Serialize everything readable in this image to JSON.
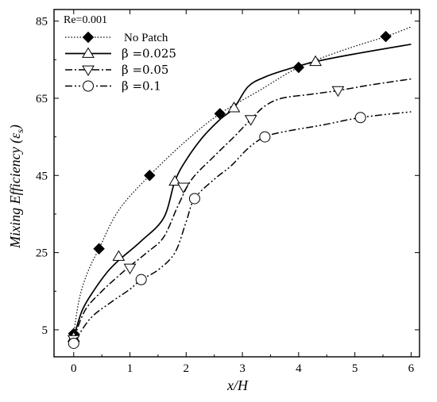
{
  "chart_data": {
    "type": "line",
    "annotation": "Re=0.001",
    "xlabel": "x/H",
    "ylabel": "Mixing Efficiency (ε",
    "ylabel_sub": "s",
    "ylabel_close": ")",
    "xlim": [
      -0.35,
      6.15
    ],
    "ylim": [
      -2,
      88
    ],
    "xticks": [
      0,
      1,
      2,
      3,
      4,
      5,
      6
    ],
    "yticks": [
      5,
      25,
      45,
      65,
      85
    ],
    "legend_position": "top-left",
    "series": [
      {
        "name": "No Patch",
        "style": "dotted",
        "marker": "diamond-filled",
        "x": [
          0,
          0.45,
          1.35,
          2.6,
          4.0,
          5.55
        ],
        "y": [
          4,
          26,
          45,
          61,
          73,
          81
        ],
        "curve_x": [
          0,
          0.1,
          0.25,
          0.45,
          0.8,
          1.35,
          2.0,
          2.6,
          3.3,
          4.0,
          4.8,
          5.55,
          6.0
        ],
        "curve_y": [
          4,
          13,
          20,
          26,
          36,
          45,
          54,
          61,
          67,
          73,
          77.5,
          81,
          83.5
        ]
      },
      {
        "name": "β =0.025",
        "style": "solid",
        "marker": "triangle-up",
        "x": [
          0,
          0.8,
          1.8,
          2.85,
          4.3
        ],
        "y": [
          3,
          24,
          43.5,
          62.5,
          74.5
        ],
        "curve_x": [
          0,
          0.15,
          0.35,
          0.6,
          0.8,
          1.2,
          1.6,
          1.8,
          2.0,
          2.3,
          2.6,
          2.85,
          3.1,
          3.4,
          3.8,
          4.3,
          5.0,
          6.0
        ],
        "curve_y": [
          3,
          10,
          15,
          20,
          23,
          28,
          34,
          43.5,
          49,
          55,
          59.5,
          62.5,
          68,
          70.5,
          72.5,
          74.5,
          76.5,
          79
        ]
      },
      {
        "name": "β =0.05",
        "style": "dashdot",
        "marker": "triangle-down",
        "x": [
          0,
          1.0,
          1.95,
          3.15,
          4.7
        ],
        "y": [
          2.5,
          21,
          42,
          59.5,
          67
        ],
        "curve_x": [
          0,
          0.2,
          0.5,
          0.8,
          1.0,
          1.3,
          1.6,
          1.85,
          2.1,
          2.5,
          2.85,
          3.15,
          3.4,
          3.7,
          4.2,
          4.7,
          5.3,
          6.0
        ],
        "curve_y": [
          2.5,
          10,
          15,
          19,
          21.5,
          25,
          29,
          37,
          44,
          50,
          55,
          59.5,
          63,
          65,
          66,
          67,
          68.5,
          70
        ]
      },
      {
        "name": "β =0.1",
        "style": "dashdotdot",
        "marker": "circle",
        "x": [
          0,
          1.2,
          2.15,
          3.4,
          5.1
        ],
        "y": [
          1.5,
          18,
          39,
          55,
          60
        ],
        "curve_x": [
          0,
          0.3,
          0.7,
          1.0,
          1.2,
          1.5,
          1.8,
          2.0,
          2.15,
          2.5,
          2.8,
          3.1,
          3.4,
          3.8,
          4.4,
          5.1,
          6.0
        ],
        "curve_y": [
          1.5,
          8,
          12.5,
          15.5,
          18,
          20.5,
          25,
          33,
          39,
          44,
          47.5,
          52,
          55,
          56.5,
          58,
          60,
          61.5
        ]
      }
    ]
  }
}
